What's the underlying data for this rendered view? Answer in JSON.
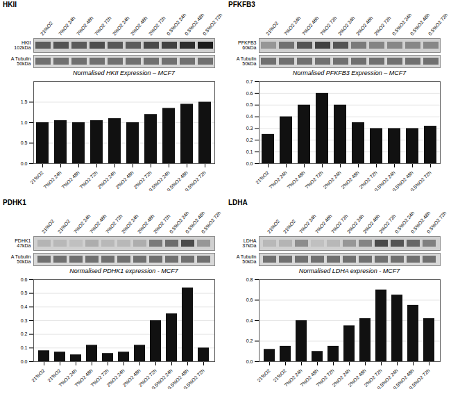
{
  "chart_data": [
    {
      "type": "bar",
      "panel_title": "HKII",
      "title": "Normalised HKII Expression – MCF7",
      "categories": [
        "21%O2",
        "7%O2 24h",
        "7%O2 48h",
        "7%O2 72h",
        "2%O2 24h",
        "2%O2 48h",
        "2%O2 72h",
        "0.5%O2 24h",
        "0.5%O2 48h",
        "0.5%O2 72h"
      ],
      "values": [
        1.0,
        1.05,
        1.0,
        1.05,
        1.1,
        1.0,
        1.2,
        1.35,
        1.45,
        1.5
      ],
      "color": "#111111",
      "ylim": [
        0,
        2.0
      ],
      "yticks": [
        {
          "value": 0,
          "label": "0.0"
        },
        0.5,
        {
          "value": 1.0,
          "label": "1.0"
        },
        1.5
      ],
      "grid": true,
      "blot": {
        "label": "HKII\n102kDa",
        "column_labels": [
          "21%O2",
          "7%O2 24h",
          "7%O2 48h",
          "7%O2 72h",
          "2%O2 24h",
          "2%O2 48h",
          "2%O2 72h",
          "0.5%O2 24h",
          "0.5%O2 48h",
          "0.5%O2 72h"
        ],
        "intensities": [
          0.6,
          0.65,
          0.62,
          0.68,
          0.63,
          0.6,
          0.7,
          0.75,
          0.85,
          0.95
        ]
      },
      "loading_control": {
        "label": "A Tubulin\n50kDa"
      }
    },
    {
      "type": "bar",
      "panel_title": "PFKFB3",
      "title": "Normalised PFKFB3 Expression – MCF7",
      "categories": [
        "21%O2",
        "7%O2 24h",
        "7%O2 48h",
        "7%O2 72h",
        "2%O2 24h",
        "2%O2 48h",
        "2%O2 72h",
        "0.5%O2 24h",
        "0.5%O2 48h",
        "0.5%O2 72h"
      ],
      "values": [
        0.25,
        0.4,
        0.5,
        0.6,
        0.5,
        0.35,
        0.3,
        0.3,
        0.3,
        0.32
      ],
      "color": "#111111",
      "ylim": [
        0,
        0.7
      ],
      "yticks": [
        {
          "value": 0,
          "label": "0.0"
        },
        0.1,
        0.2,
        0.3,
        0.4,
        0.5,
        0.6,
        0.7
      ],
      "grid": true,
      "blot": {
        "label": "PFKFB3\n60kDa",
        "column_labels": [
          "21%O2",
          "7%O2 24h",
          "7%O2 48h",
          "7%O2 72h",
          "2%O2 24h",
          "2%O2 48h",
          "2%O2 72h",
          "0.5%O2 24h",
          "0.5%O2 48h",
          "0.5%O2 72h"
        ],
        "intensities": [
          0.3,
          0.5,
          0.65,
          0.75,
          0.65,
          0.45,
          0.4,
          0.38,
          0.38,
          0.38
        ]
      },
      "loading_control": {
        "label": "A Tubulin\n50kDa"
      }
    },
    {
      "type": "bar",
      "panel_title": "PDHK1",
      "title": "Normalised PDHK1 expression - MCF7",
      "categories": [
        "21%O2",
        "21%O2",
        "7%O2 24h",
        "7%O2 48h",
        "7%O2 72h",
        "2%O2 24h",
        "2%O2 48h",
        "2%O2 72h",
        "0.5%O2 24h",
        "0.5%O2 48h",
        "0.5%O2 72h"
      ],
      "values": [
        0.08,
        0.07,
        0.05,
        0.12,
        0.06,
        0.07,
        0.12,
        0.3,
        0.35,
        0.54,
        0.1
      ],
      "color": "#111111",
      "ylim": [
        0,
        0.6
      ],
      "yticks": [
        {
          "value": 0,
          "label": "0.0"
        },
        0.1,
        0.2,
        0.3,
        0.4,
        0.5,
        0.6
      ],
      "grid": true,
      "blot": {
        "label": "PDHK1\n47kDa",
        "column_labels": [
          "21%O2",
          "21%O2",
          "7%O2 24h",
          "7%O2 48h",
          "7%O2 72h",
          "2%O2 24h",
          "2%O2 48h",
          "2%O2 72h",
          "0.5%O2 24h",
          "0.5%O2 48h",
          "0.5%O2 72h"
        ],
        "intensities": [
          0.15,
          0.12,
          0.08,
          0.18,
          0.12,
          0.12,
          0.18,
          0.45,
          0.52,
          0.7,
          0.3
        ]
      },
      "loading_control": {
        "label": "A Tubulin\n50kDa"
      }
    },
    {
      "type": "bar",
      "panel_title": "LDHA",
      "title": "Normalised LDHA expresion - MCF7",
      "categories": [
        "21%O2",
        "21%O2",
        "7%O2 24h",
        "7%O2 48h",
        "7%O2 72h",
        "2%O2 24h",
        "2%O2 48h",
        "2%O2 72h",
        "0.5%O2 24h",
        "0.5%O2 48h",
        "0.5%O2 72h"
      ],
      "values": [
        0.12,
        0.15,
        0.4,
        0.1,
        0.15,
        0.35,
        0.42,
        0.7,
        0.65,
        0.55,
        0.42
      ],
      "color": "#111111",
      "ylim": [
        0,
        0.8
      ],
      "yticks": [
        {
          "value": 0,
          "label": "0.0"
        },
        0.2,
        0.4,
        0.6,
        0.8
      ],
      "grid": true,
      "blot": {
        "label": "LDHA\n37kDa",
        "column_labels": [
          "21%O2",
          "21%O2",
          "7%O2 24h",
          "7%O2 48h",
          "7%O2 72h",
          "2%O2 24h",
          "2%O2 48h",
          "2%O2 72h",
          "0.5%O2 24h",
          "0.5%O2 48h",
          "0.5%O2 72h"
        ],
        "intensities": [
          0.12,
          0.15,
          0.35,
          0.08,
          0.12,
          0.3,
          0.4,
          0.7,
          0.65,
          0.55,
          0.42
        ]
      },
      "loading_control": {
        "label": "A Tubulin\n50kDa"
      }
    }
  ]
}
